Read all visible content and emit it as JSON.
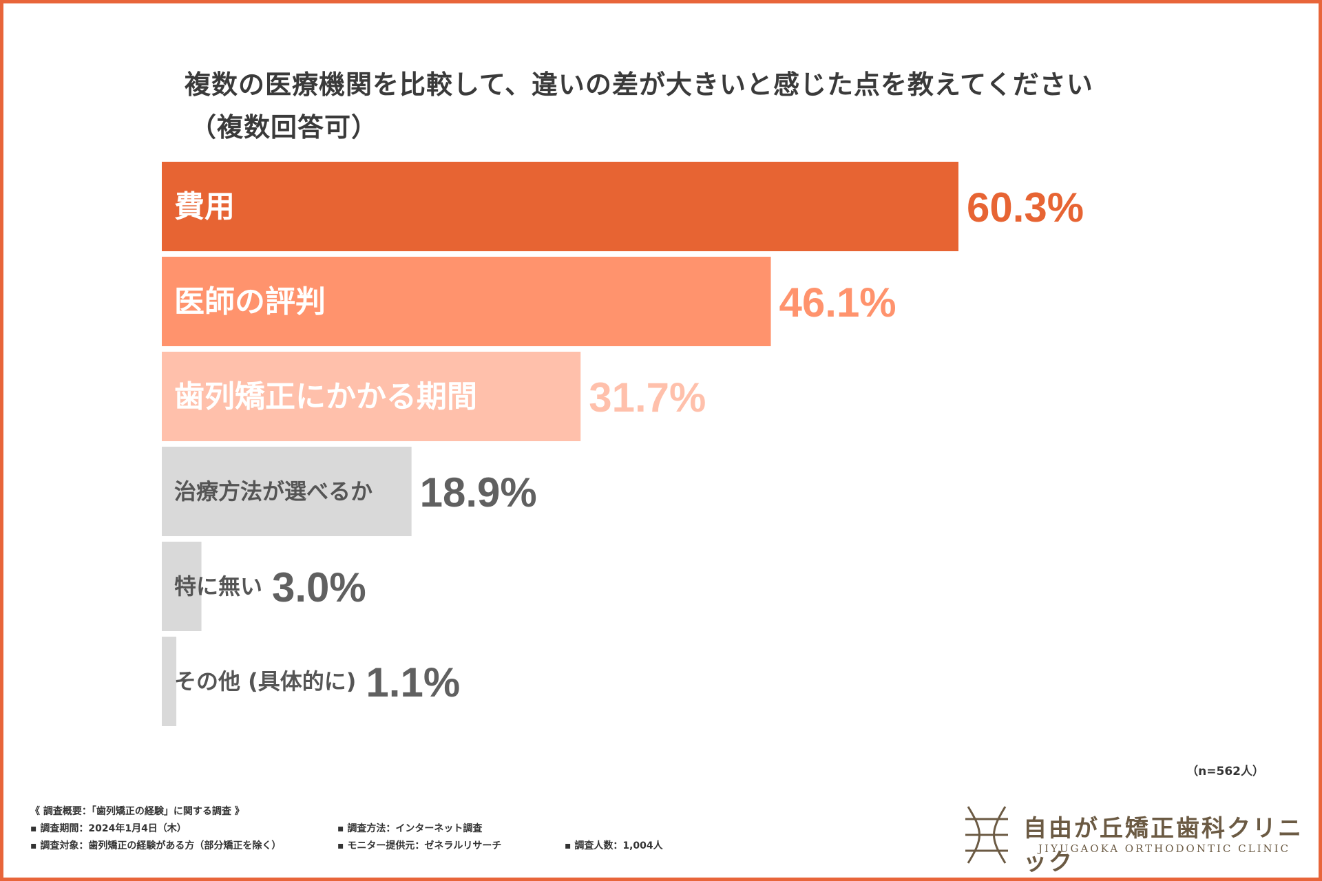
{
  "chart_data": {
    "type": "bar",
    "orientation": "horizontal",
    "title": "複数の医療機関を比較して、違いの差が大きいと感じた点を教えてください",
    "subtitle": "（複数回答可）",
    "categories": [
      "費用",
      "医師の評判",
      "歯列矯正にかかる期間",
      "治療方法が選べるか",
      "特に無い",
      "その他 (具体的に)"
    ],
    "values": [
      60.3,
      46.1,
      31.7,
      18.9,
      3.0,
      1.1
    ],
    "value_labels": [
      "60.3%",
      "46.1%",
      "31.7%",
      "18.9%",
      "3.0%",
      "1.1%"
    ],
    "bar_colors": [
      "#e76433",
      "#ff936d",
      "#ffc0ab",
      "#d9d9d9",
      "#d9d9d9",
      "#d9d9d9"
    ],
    "category_label_colors": [
      "#ffffff",
      "#ffffff",
      "#ffffff",
      "#555555",
      "#555555",
      "#555555"
    ],
    "value_label_colors": [
      "#e76433",
      "#ff936d",
      "#ffc0ab",
      "#606060",
      "#606060",
      "#606060"
    ],
    "xlim": [
      0,
      100
    ],
    "xlabel": "",
    "ylabel": "",
    "grid": false,
    "legend": "none",
    "sample_note": "（n=562人）"
  },
  "survey_overview": {
    "heading": "《 調査概要：「歯列矯正の経験」に関する調査 》",
    "period": "▪ 調査期間：2024年1月4日（木）",
    "target": "▪ 調査対象：歯列矯正の経験がある方（部分矯正を除く）",
    "method": "▪ 調査方法：インターネット調査",
    "provider": "▪ モニター提供元：ゼネラルリサーチ",
    "count": "▪ 調査人数：1,004人"
  },
  "logo": {
    "name_jp": "自由が丘矯正歯科クリニック",
    "name_en": "JIYUGAOKA ORTHODONTIC CLINIC",
    "color": "#6b5a43"
  },
  "colors": {
    "frame": "#e8653a",
    "title": "#3a3a3a"
  }
}
